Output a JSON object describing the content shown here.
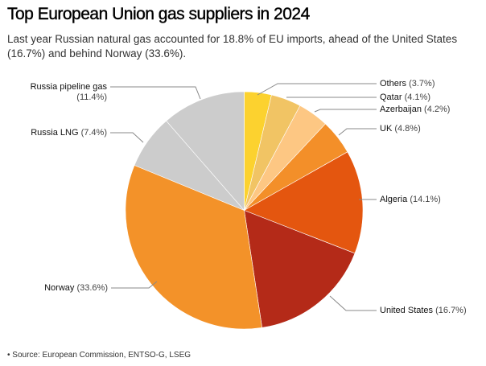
{
  "title": "Top European Union gas suppliers in 2024",
  "subtitle": "Last year Russian natural gas accounted for 18.8% of EU imports, ahead of the United States (16.7%) and behind Norway (33.6%).",
  "source": "• Source: European Commission, ENTSO-G, LSEG",
  "chart_data": {
    "type": "pie",
    "title": "Top European Union gas suppliers in 2024",
    "start": "top, clockwise",
    "slices": [
      {
        "name": "Others",
        "value": 3.7,
        "label": "(3.7%)",
        "color": "#fcd22f"
      },
      {
        "name": "Qatar",
        "value": 4.1,
        "label": "(4.1%)",
        "color": "#f1c464"
      },
      {
        "name": "Azerbaijan",
        "value": 4.2,
        "label": "(4.2%)",
        "color": "#fdc783"
      },
      {
        "name": "UK",
        "value": 4.8,
        "label": "(4.8%)",
        "color": "#f38f29"
      },
      {
        "name": "Algeria",
        "value": 14.1,
        "label": "(14.1%)",
        "color": "#e4560f"
      },
      {
        "name": "United States",
        "value": 16.7,
        "label": "(16.7%)",
        "color": "#b42a18"
      },
      {
        "name": "Norway",
        "value": 33.6,
        "label": "(33.6%)",
        "color": "#f39229"
      },
      {
        "name": "Russia LNG",
        "value": 7.4,
        "label": "(7.4%)",
        "color": "#cccccc"
      },
      {
        "name": "Russia pipeline gas",
        "value": 11.4,
        "label": "(11.4%)",
        "color": "#cccccc"
      }
    ]
  }
}
